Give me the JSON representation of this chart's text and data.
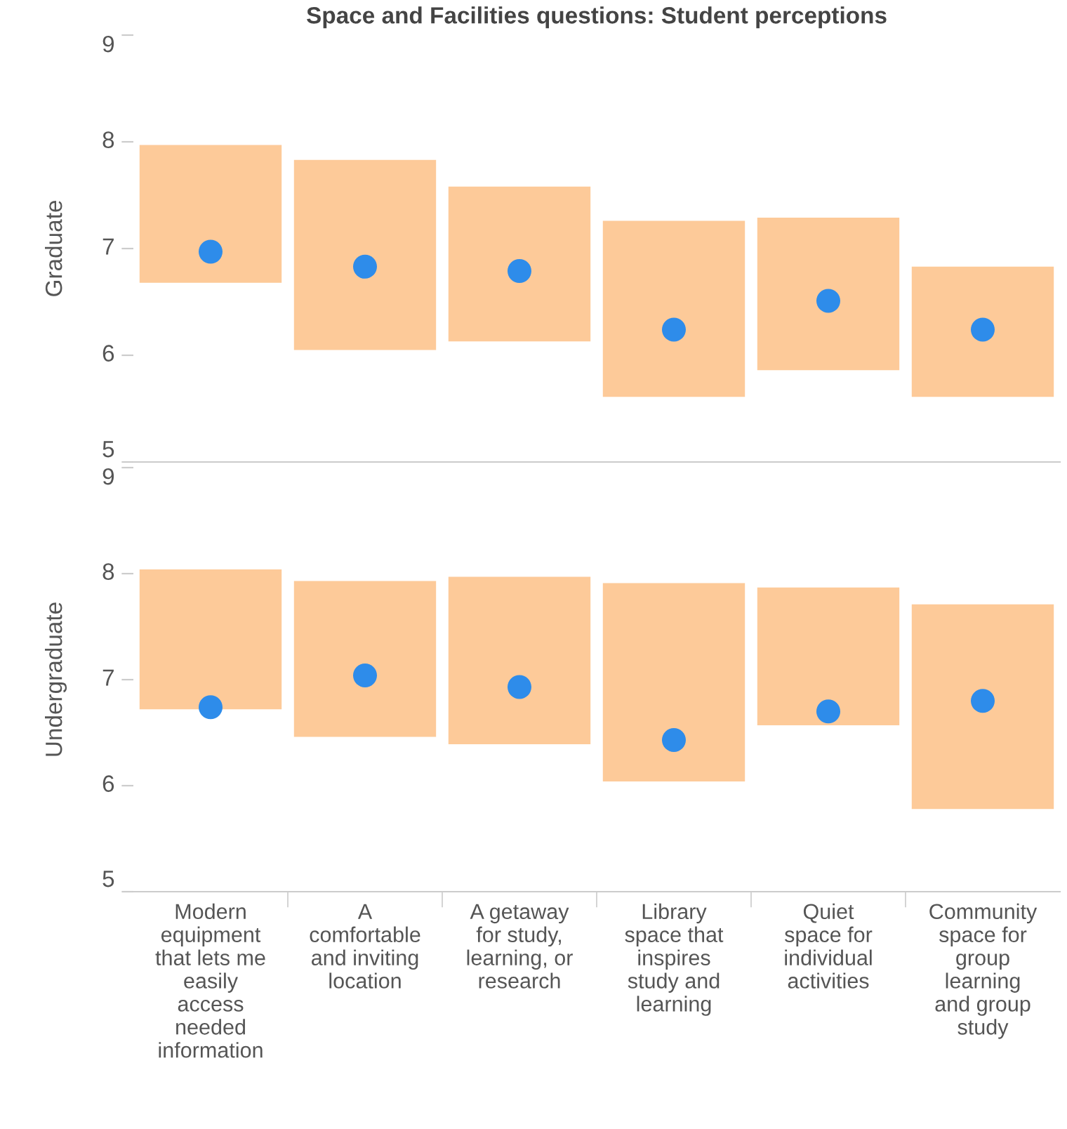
{
  "chart_data": [
    {
      "type": "bar",
      "title": "Space and Facilities questions: Student perceptions",
      "ylabel": "Graduate",
      "categories": [
        null,
        null,
        null,
        null,
        null,
        null
      ],
      "series": [
        {
          "color": "#fdca99",
          "base": [
            6.68,
            6.05,
            6.13,
            5.61,
            5.86,
            5.61
          ],
          "values": [
            1.29,
            1.78,
            1.45,
            1.65,
            1.43,
            1.22
          ]
        },
        {
          "type": "scatter",
          "color": "#2e8cea",
          "values": [
            6.97,
            6.83,
            6.79,
            6.24,
            6.51,
            6.24
          ]
        }
      ],
      "ylim": [
        5,
        9
      ],
      "yticks": [
        5,
        6,
        7,
        8,
        9
      ],
      "marker": "circle",
      "tick_labels": "y"
    },
    {
      "type": "bar",
      "ylabel": "Undergraduate",
      "categories": [
        "Modern\nequipment\nthat lets me\neasily\naccess\nneeded\ninformation",
        "A\ncomfortable\nand inviting\nlocation",
        "A getaway\nfor study,\nlearning, or\nresearch",
        "Library\nspace that\ninspires\nstudy and\nlearning",
        "Quiet\nspace for\nindividual\nactivities",
        "Community\nspace for\ngroup\nlearning\nand group\nstudy"
      ],
      "series": [
        {
          "color": "#fdca99",
          "base": [
            6.72,
            6.46,
            6.39,
            6.04,
            6.57,
            5.78
          ],
          "values": [
            1.32,
            1.47,
            1.58,
            1.87,
            1.3,
            1.93
          ]
        },
        {
          "type": "scatter",
          "color": "#2e8cea",
          "values": [
            6.74,
            7.04,
            6.93,
            6.43,
            6.7,
            6.8
          ]
        }
      ],
      "ylim": [
        5,
        9
      ],
      "yticks": [
        5,
        6,
        7,
        8,
        9
      ],
      "marker": "circle"
    }
  ]
}
